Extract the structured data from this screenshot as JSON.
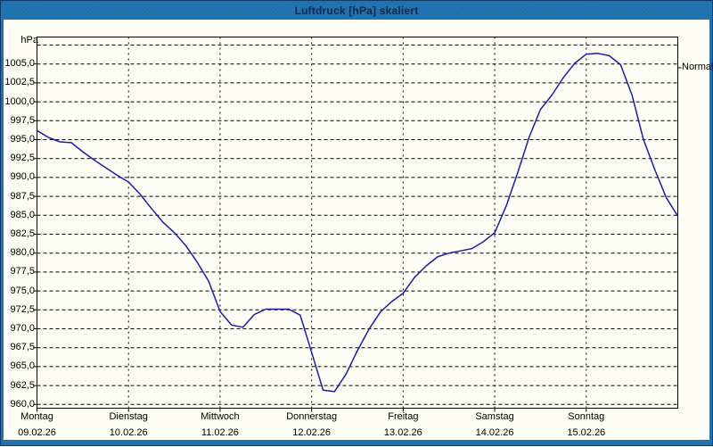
{
  "window": {
    "title": "Luftdruck [hPa] skaliert"
  },
  "colors": {
    "frame": "#1e6fad",
    "frame_border": "#0d3a66",
    "title_text": "#0a2a52",
    "content_bg": "#fdfdf6",
    "grid": "#000000",
    "curve": "#1c1ca8",
    "label_text": "#000000"
  },
  "chart_data": {
    "type": "line",
    "title": "Luftdruck [hPa] skaliert",
    "unit_label": "hPa",
    "right_label": "Normal",
    "right_label_value": 1004.5,
    "ylim": [
      960.0,
      1007.5
    ],
    "y_step": 2.5,
    "y_tick_labels": [
      "1005,0",
      "1002,5",
      "1000,0",
      "997,5",
      "995,0",
      "992,5",
      "990,0",
      "987,5",
      "985,0",
      "982,5",
      "980,0",
      "977,5",
      "975,0",
      "972,5",
      "970,0",
      "967,5",
      "965,0",
      "962,5",
      "960,0"
    ],
    "grid": "dashed",
    "x_days": [
      {
        "name": "Montag",
        "date": "09.02.26"
      },
      {
        "name": "Dienstag",
        "date": "10.02.26"
      },
      {
        "name": "Mittwoch",
        "date": "11.02.26"
      },
      {
        "name": "Donnerstag",
        "date": "12.02.26"
      },
      {
        "name": "Freitag",
        "date": "13.02.26"
      },
      {
        "name": "Samstag",
        "date": "14.02.26"
      },
      {
        "name": "Sonntag",
        "date": "15.02.26"
      }
    ],
    "series": [
      {
        "name": "Luftdruck",
        "interval_hours": 3,
        "start": "Montag 09.02.26 00:00",
        "values": [
          996.2,
          995.3,
          994.7,
          994.6,
          993.4,
          992.3,
          991.3,
          990.3,
          989.4,
          987.8,
          985.9,
          984.1,
          982.7,
          981.0,
          978.8,
          976.3,
          972.3,
          970.5,
          970.2,
          971.9,
          972.6,
          972.6,
          972.6,
          971.8,
          966.9,
          961.9,
          961.7,
          964.0,
          967.1,
          969.9,
          972.2,
          973.6,
          974.7,
          976.8,
          978.3,
          979.5,
          980.0,
          980.3,
          980.6,
          981.5,
          982.7,
          986.2,
          990.6,
          995.3,
          999.0,
          1000.9,
          1003.2,
          1005.1,
          1006.3,
          1006.4,
          1006.1,
          1004.9,
          1000.9,
          995.0,
          991.0,
          987.3,
          984.9
        ]
      }
    ]
  }
}
